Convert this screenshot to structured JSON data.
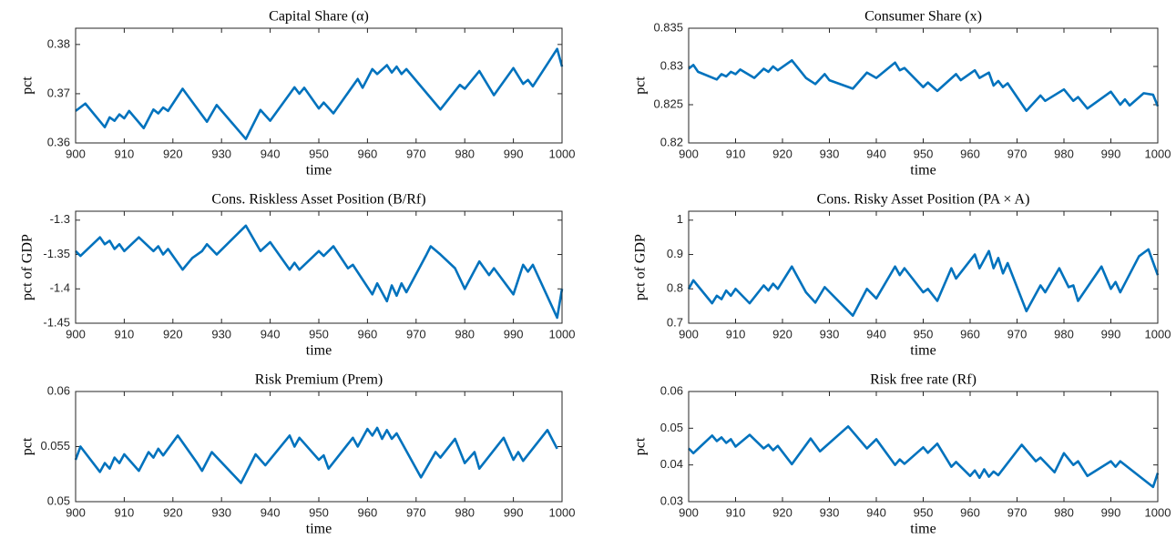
{
  "chart_data": [
    {
      "type": "line",
      "title": "Capital Share (α)",
      "x_label": "time",
      "y_label": "pct",
      "color": "#0072bd",
      "xlim": [
        900,
        1000
      ],
      "xticks": [
        900,
        910,
        920,
        930,
        940,
        950,
        960,
        970,
        980,
        990,
        1000
      ],
      "ylim": [
        0.36,
        0.3833
      ],
      "yticks": [
        0.36,
        0.37,
        0.38
      ],
      "x": [
        900,
        902,
        906,
        907,
        908,
        909,
        910,
        911,
        914,
        916,
        917,
        918,
        919,
        922,
        927,
        929,
        935,
        938,
        940,
        945,
        946,
        947,
        950,
        951,
        953,
        958,
        959,
        961,
        962,
        964,
        965,
        966,
        967,
        968,
        975,
        979,
        980,
        983,
        986,
        990,
        992,
        993,
        994,
        999,
        1000
      ],
      "values": [
        0.3665,
        0.368,
        0.3632,
        0.3652,
        0.3645,
        0.3658,
        0.365,
        0.3665,
        0.363,
        0.3668,
        0.366,
        0.3672,
        0.3665,
        0.371,
        0.3643,
        0.3677,
        0.3608,
        0.3667,
        0.3645,
        0.3713,
        0.37,
        0.3712,
        0.367,
        0.3682,
        0.366,
        0.373,
        0.3712,
        0.375,
        0.374,
        0.3758,
        0.3743,
        0.3755,
        0.374,
        0.375,
        0.3668,
        0.3718,
        0.371,
        0.3746,
        0.3697,
        0.3752,
        0.372,
        0.3728,
        0.3715,
        0.3791,
        0.3755
      ]
    },
    {
      "type": "line",
      "title": "Consumer Share (x)",
      "x_label": "time",
      "y_label": "pct",
      "color": "#0072bd",
      "xlim": [
        900,
        1000
      ],
      "xticks": [
        900,
        910,
        920,
        930,
        940,
        950,
        960,
        970,
        980,
        990,
        1000
      ],
      "ylim": [
        0.82,
        0.835
      ],
      "yticks": [
        0.82,
        0.825,
        0.83,
        0.835
      ],
      "x": [
        900,
        901,
        902,
        906,
        907,
        908,
        909,
        910,
        911,
        914,
        916,
        917,
        918,
        919,
        922,
        925,
        927,
        929,
        930,
        935,
        938,
        940,
        944,
        945,
        946,
        950,
        951,
        953,
        957,
        958,
        961,
        962,
        964,
        965,
        966,
        967,
        968,
        972,
        975,
        976,
        980,
        982,
        983,
        985,
        990,
        992,
        993,
        994,
        997,
        999,
        1000
      ],
      "values": [
        0.8297,
        0.8302,
        0.8293,
        0.8283,
        0.829,
        0.8287,
        0.8293,
        0.829,
        0.8296,
        0.8285,
        0.8297,
        0.8293,
        0.83,
        0.8295,
        0.8308,
        0.8285,
        0.8277,
        0.829,
        0.8282,
        0.8271,
        0.8292,
        0.8285,
        0.8305,
        0.8295,
        0.8298,
        0.8273,
        0.8279,
        0.8268,
        0.829,
        0.8282,
        0.8295,
        0.8285,
        0.8292,
        0.8275,
        0.8281,
        0.8273,
        0.8278,
        0.8242,
        0.8262,
        0.8255,
        0.827,
        0.8255,
        0.826,
        0.8245,
        0.8267,
        0.825,
        0.8257,
        0.8249,
        0.8265,
        0.8263,
        0.8248
      ]
    },
    {
      "type": "line",
      "title": "Cons. Riskless Asset Position (B/Rf)",
      "x_label": "time",
      "y_label": "pct of GDP",
      "color": "#0072bd",
      "xlim": [
        900,
        1000
      ],
      "xticks": [
        900,
        910,
        920,
        930,
        940,
        950,
        960,
        970,
        980,
        990,
        1000
      ],
      "ylim": [
        -1.45,
        -1.287
      ],
      "yticks": [
        -1.45,
        -1.4,
        -1.35,
        -1.3
      ],
      "x": [
        900,
        901,
        905,
        906,
        907,
        908,
        909,
        910,
        913,
        916,
        917,
        918,
        919,
        922,
        924,
        926,
        927,
        929,
        935,
        938,
        940,
        944,
        945,
        946,
        950,
        951,
        953,
        956,
        957,
        961,
        962,
        964,
        965,
        966,
        967,
        968,
        972,
        973,
        975,
        978,
        980,
        983,
        985,
        986,
        990,
        992,
        993,
        994,
        999,
        1000
      ],
      "values": [
        -1.345,
        -1.352,
        -1.325,
        -1.335,
        -1.33,
        -1.342,
        -1.335,
        -1.345,
        -1.325,
        -1.345,
        -1.338,
        -1.35,
        -1.342,
        -1.372,
        -1.355,
        -1.345,
        -1.335,
        -1.35,
        -1.308,
        -1.345,
        -1.332,
        -1.372,
        -1.362,
        -1.372,
        -1.345,
        -1.352,
        -1.338,
        -1.37,
        -1.365,
        -1.408,
        -1.392,
        -1.418,
        -1.395,
        -1.41,
        -1.392,
        -1.405,
        -1.352,
        -1.338,
        -1.35,
        -1.37,
        -1.4,
        -1.36,
        -1.38,
        -1.37,
        -1.408,
        -1.365,
        -1.375,
        -1.365,
        -1.442,
        -1.4
      ]
    },
    {
      "type": "line",
      "title": "Cons. Risky Asset Position (PA × A)",
      "x_label": "time",
      "y_label": "pct of GDP",
      "color": "#0072bd",
      "xlim": [
        900,
        1000
      ],
      "xticks": [
        900,
        910,
        920,
        930,
        940,
        950,
        960,
        970,
        980,
        990,
        1000
      ],
      "ylim": [
        0.7,
        1.026
      ],
      "yticks": [
        0.7,
        0.8,
        0.9,
        1
      ],
      "x": [
        900,
        901,
        905,
        906,
        907,
        908,
        909,
        910,
        913,
        916,
        917,
        918,
        919,
        922,
        925,
        927,
        929,
        935,
        938,
        940,
        944,
        945,
        946,
        950,
        951,
        953,
        956,
        957,
        961,
        962,
        964,
        965,
        966,
        967,
        968,
        972,
        975,
        976,
        979,
        981,
        982,
        983,
        988,
        990,
        991,
        992,
        996,
        998,
        1000
      ],
      "values": [
        0.8,
        0.825,
        0.758,
        0.78,
        0.77,
        0.795,
        0.78,
        0.8,
        0.758,
        0.81,
        0.795,
        0.815,
        0.8,
        0.865,
        0.79,
        0.76,
        0.805,
        0.722,
        0.8,
        0.772,
        0.865,
        0.84,
        0.86,
        0.79,
        0.8,
        0.765,
        0.86,
        0.83,
        0.9,
        0.86,
        0.91,
        0.86,
        0.89,
        0.845,
        0.875,
        0.735,
        0.81,
        0.79,
        0.86,
        0.805,
        0.81,
        0.765,
        0.865,
        0.8,
        0.82,
        0.79,
        0.895,
        0.915,
        0.84
      ]
    },
    {
      "type": "line",
      "title": "Risk Premium (Prem)",
      "x_label": "time",
      "y_label": "pct",
      "color": "#0072bd",
      "xlim": [
        900,
        1000
      ],
      "xticks": [
        900,
        910,
        920,
        930,
        940,
        950,
        960,
        970,
        980,
        990,
        1000
      ],
      "ylim": [
        0.05,
        0.06
      ],
      "yticks": [
        0.05,
        0.055,
        0.06
      ],
      "x": [
        900,
        901,
        905,
        906,
        907,
        908,
        909,
        910,
        913,
        915,
        916,
        917,
        918,
        921,
        925,
        926,
        928,
        934,
        937,
        939,
        944,
        945,
        946,
        950,
        951,
        952,
        957,
        958,
        960,
        961,
        962,
        963,
        964,
        965,
        966,
        971,
        974,
        975,
        978,
        980,
        982,
        983,
        988,
        990,
        991,
        992,
        997,
        999
      ],
      "values": [
        0.0538,
        0.055,
        0.0527,
        0.0535,
        0.053,
        0.054,
        0.0535,
        0.0543,
        0.0528,
        0.0545,
        0.054,
        0.0548,
        0.0542,
        0.056,
        0.0535,
        0.0528,
        0.0545,
        0.0517,
        0.0543,
        0.0533,
        0.056,
        0.055,
        0.0558,
        0.0538,
        0.0542,
        0.053,
        0.0558,
        0.055,
        0.0566,
        0.056,
        0.0567,
        0.0557,
        0.0565,
        0.0557,
        0.0562,
        0.0522,
        0.0545,
        0.054,
        0.0557,
        0.0535,
        0.0545,
        0.053,
        0.0558,
        0.0538,
        0.0545,
        0.0537,
        0.0565,
        0.0548
      ]
    },
    {
      "type": "line",
      "title": "Risk free rate (Rf)",
      "x_label": "time",
      "y_label": "pct",
      "color": "#0072bd",
      "xlim": [
        900,
        1000
      ],
      "xticks": [
        900,
        910,
        920,
        930,
        940,
        950,
        960,
        970,
        980,
        990,
        1000
      ],
      "ylim": [
        0.03,
        0.06
      ],
      "yticks": [
        0.03,
        0.04,
        0.05,
        0.06
      ],
      "x": [
        900,
        901,
        905,
        906,
        907,
        908,
        909,
        910,
        913,
        916,
        917,
        918,
        919,
        922,
        926,
        928,
        934,
        938,
        940,
        944,
        945,
        946,
        950,
        951,
        953,
        956,
        957,
        960,
        961,
        962,
        963,
        964,
        965,
        966,
        971,
        974,
        975,
        978,
        980,
        982,
        983,
        985,
        990,
        991,
        992,
        999,
        1000
      ],
      "values": [
        0.0445,
        0.0432,
        0.048,
        0.0465,
        0.0475,
        0.046,
        0.047,
        0.045,
        0.0482,
        0.0445,
        0.0455,
        0.044,
        0.0452,
        0.0402,
        0.0472,
        0.0437,
        0.0505,
        0.0445,
        0.047,
        0.04,
        0.0415,
        0.0403,
        0.0448,
        0.0433,
        0.0458,
        0.0395,
        0.0408,
        0.037,
        0.0385,
        0.0365,
        0.0388,
        0.0368,
        0.0382,
        0.0372,
        0.0455,
        0.041,
        0.042,
        0.038,
        0.0432,
        0.04,
        0.041,
        0.037,
        0.041,
        0.0395,
        0.041,
        0.034,
        0.0378
      ]
    }
  ]
}
